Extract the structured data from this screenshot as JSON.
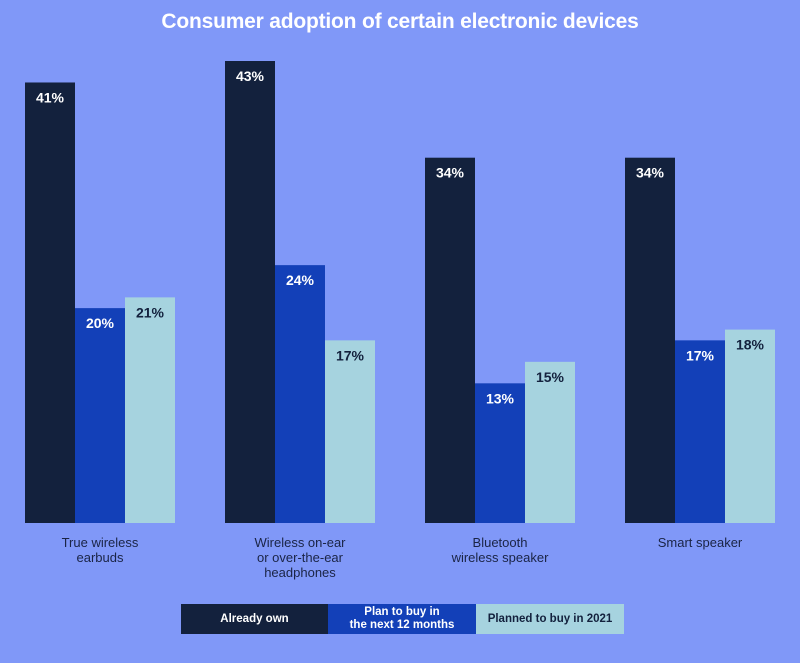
{
  "chart_data": {
    "type": "bar",
    "title": "Consumer adoption of certain electronic devices",
    "categories": [
      "True wireless\nearbuds",
      "Wireless on-ear\nor over-the-ear\nheadphones",
      "Bluetooth\nwireless speaker",
      "Smart speaker"
    ],
    "series": [
      {
        "name": "Already own",
        "values": [
          41,
          43,
          34,
          34
        ],
        "labels": [
          "41%",
          "43%",
          "34%",
          "34%"
        ],
        "color": "#13213d"
      },
      {
        "name": "Plan to buy in\nthe next 12 months",
        "values": [
          20,
          24,
          13,
          17
        ],
        "labels": [
          "20%",
          "24%",
          "13%",
          "17%"
        ],
        "color": "#1340b8"
      },
      {
        "name": "Planned to buy in 2021",
        "values": [
          21,
          17,
          15,
          18
        ],
        "labels": [
          "21%",
          "17%",
          "15%",
          "18%"
        ],
        "color": "#a6d3df"
      }
    ],
    "ylim": [
      0,
      43
    ],
    "grid": false,
    "legend_position": "bottom"
  }
}
